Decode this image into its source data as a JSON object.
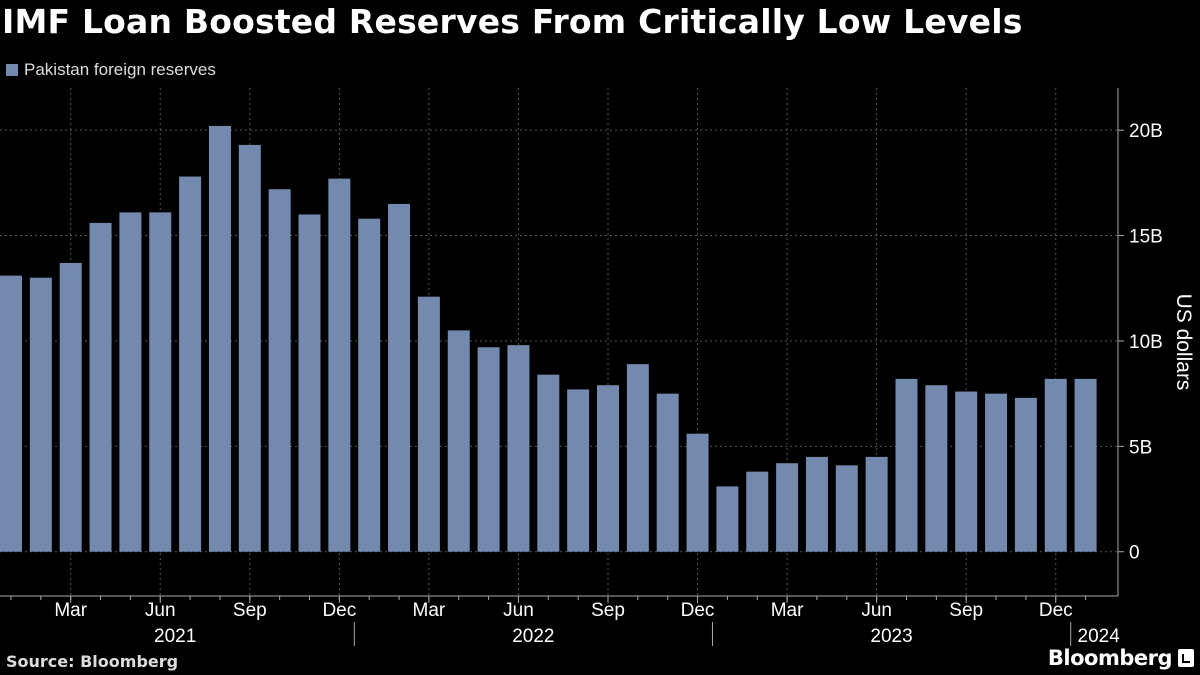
{
  "header": {
    "title": "IMF Loan Boosted Reserves From Critically Low Levels"
  },
  "legend": {
    "label": "Pakistan foreign reserves",
    "color": "#7389ad"
  },
  "footer": {
    "source": "Source: Bloomberg",
    "brand": "Bloomberg"
  },
  "chart_data": {
    "type": "bar",
    "title": "IMF Loan Boosted Reserves From Critically Low Levels",
    "ylabel": "US dollars",
    "xlabel": "",
    "ylim": [
      -2.1,
      22.0
    ],
    "grid": true,
    "legend_position": "top-left",
    "color": "#7389ad",
    "y_ticks": [
      {
        "value": 20,
        "label": "20B"
      },
      {
        "value": 15,
        "label": "15B"
      },
      {
        "value": 10,
        "label": "10B"
      },
      {
        "value": 5,
        "label": "5B"
      },
      {
        "value": 0,
        "label": "0"
      }
    ],
    "series": [
      {
        "name": "Pakistan foreign reserves",
        "values": [
          13.1,
          13.0,
          13.7,
          15.6,
          16.1,
          16.1,
          17.8,
          20.2,
          19.3,
          17.2,
          16.0,
          17.7,
          15.8,
          16.5,
          12.1,
          10.5,
          9.7,
          9.8,
          8.4,
          7.7,
          7.9,
          8.9,
          7.5,
          5.6,
          3.1,
          3.8,
          4.2,
          4.5,
          4.1,
          4.5,
          8.2,
          7.9,
          7.6,
          7.5,
          7.3,
          8.2,
          8.2
        ]
      }
    ],
    "categories": [
      "Jan 2021",
      "Feb 2021",
      "Mar 2021",
      "Apr 2021",
      "May 2021",
      "Jun 2021",
      "Jul 2021",
      "Aug 2021",
      "Sep 2021",
      "Oct 2021",
      "Nov 2021",
      "Dec 2021",
      "Jan 2022",
      "Feb 2022",
      "Mar 2022",
      "Apr 2022",
      "May 2022",
      "Jun 2022",
      "Jul 2022",
      "Aug 2022",
      "Sep 2022",
      "Oct 2022",
      "Nov 2022",
      "Dec 2022",
      "Jan 2023",
      "Feb 2023",
      "Mar 2023",
      "Apr 2023",
      "May 2023",
      "Jun 2023",
      "Jul 2023",
      "Aug 2023",
      "Sep 2023",
      "Oct 2023",
      "Nov 2023",
      "Dec 2023",
      "Jan 2024"
    ],
    "x_month_ticks": [
      {
        "index": 2,
        "label": "Mar"
      },
      {
        "index": 5,
        "label": "Jun"
      },
      {
        "index": 8,
        "label": "Sep"
      },
      {
        "index": 11,
        "label": "Dec"
      },
      {
        "index": 14,
        "label": "Mar"
      },
      {
        "index": 17,
        "label": "Jun"
      },
      {
        "index": 20,
        "label": "Sep"
      },
      {
        "index": 23,
        "label": "Dec"
      },
      {
        "index": 26,
        "label": "Mar"
      },
      {
        "index": 29,
        "label": "Jun"
      },
      {
        "index": 32,
        "label": "Sep"
      },
      {
        "index": 35,
        "label": "Dec"
      }
    ],
    "x_year_ticks": [
      {
        "label": "2021",
        "start_index": 0,
        "end_index": 11
      },
      {
        "label": "2022",
        "start_index": 12,
        "end_index": 23
      },
      {
        "label": "2023",
        "start_index": 24,
        "end_index": 35
      },
      {
        "label": "2024",
        "start_index": 36,
        "end_index": 36
      }
    ]
  }
}
